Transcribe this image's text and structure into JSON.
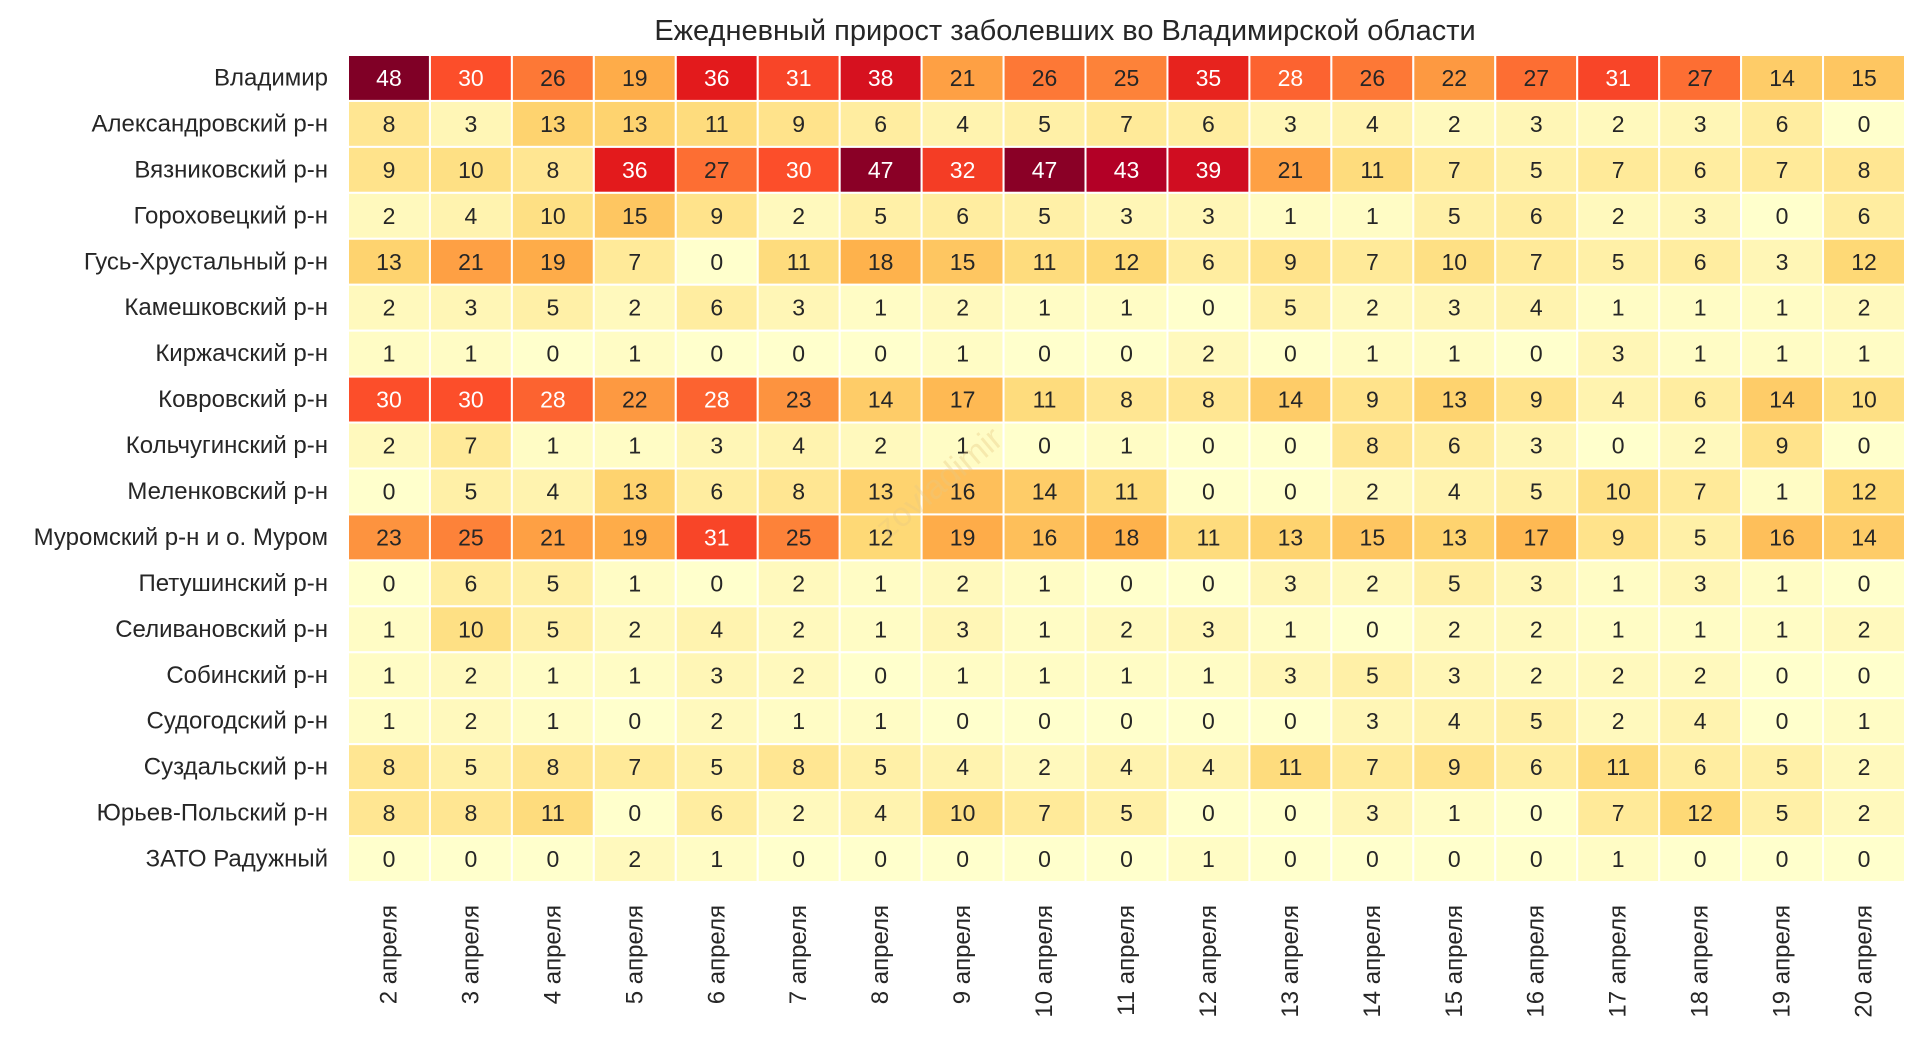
{
  "chart_data": {
    "type": "heatmap",
    "title": "Ежедневный прирост заболевших во Владимирской области",
    "watermark": "zovladimir",
    "colormap": [
      "#ffffcc",
      "#ffeda0",
      "#fed976",
      "#feb24c",
      "#fd8d3c",
      "#fc4e2a",
      "#e31a1c",
      "#bd0026",
      "#800026"
    ],
    "vmin": 0,
    "vmax": 48,
    "columns": [
      "2 апреля",
      "3 апреля",
      "4 апреля",
      "5 апреля",
      "6 апреля",
      "7 апреля",
      "8 апреля",
      "9 апреля",
      "10 апреля",
      "11 апреля",
      "12 апреля",
      "13 апреля",
      "14 апреля",
      "15 апреля",
      "16 апреля",
      "17 апреля",
      "18 апреля",
      "19 апреля",
      "20 апреля"
    ],
    "rows": [
      {
        "name": "Владимир",
        "values": [
          48,
          30,
          26,
          19,
          36,
          31,
          38,
          21,
          26,
          25,
          35,
          28,
          26,
          22,
          27,
          31,
          27,
          14,
          15
        ]
      },
      {
        "name": "Александровский р-н",
        "values": [
          8,
          3,
          13,
          13,
          11,
          9,
          6,
          4,
          5,
          7,
          6,
          3,
          4,
          2,
          3,
          2,
          3,
          6,
          0
        ]
      },
      {
        "name": "Вязниковский р-н",
        "values": [
          9,
          10,
          8,
          36,
          27,
          30,
          47,
          32,
          47,
          43,
          39,
          21,
          11,
          7,
          5,
          7,
          6,
          7,
          8
        ]
      },
      {
        "name": "Гороховецкий р-н",
        "values": [
          2,
          4,
          10,
          15,
          9,
          2,
          5,
          6,
          5,
          3,
          3,
          1,
          1,
          5,
          6,
          2,
          3,
          0,
          6
        ]
      },
      {
        "name": "Гусь-Хрустальный р-н",
        "values": [
          13,
          21,
          19,
          7,
          0,
          11,
          18,
          15,
          11,
          12,
          6,
          9,
          7,
          10,
          7,
          5,
          6,
          3,
          12
        ]
      },
      {
        "name": "Камешковский р-н",
        "values": [
          2,
          3,
          5,
          2,
          6,
          3,
          1,
          2,
          1,
          1,
          0,
          5,
          2,
          3,
          4,
          1,
          1,
          1,
          2
        ]
      },
      {
        "name": "Киржачский р-н",
        "values": [
          1,
          1,
          0,
          1,
          0,
          0,
          0,
          1,
          0,
          0,
          2,
          0,
          1,
          1,
          0,
          3,
          1,
          1,
          1
        ]
      },
      {
        "name": "Ковровский р-н",
        "values": [
          30,
          30,
          28,
          22,
          28,
          23,
          14,
          17,
          11,
          8,
          8,
          14,
          9,
          13,
          9,
          4,
          6,
          14,
          10
        ]
      },
      {
        "name": "Кольчугинский р-н",
        "values": [
          2,
          7,
          1,
          1,
          3,
          4,
          2,
          1,
          0,
          1,
          0,
          0,
          8,
          6,
          3,
          0,
          2,
          9,
          0
        ]
      },
      {
        "name": "Меленковский р-н",
        "values": [
          0,
          5,
          4,
          13,
          6,
          8,
          13,
          16,
          14,
          11,
          0,
          0,
          2,
          4,
          5,
          10,
          7,
          1,
          12
        ]
      },
      {
        "name": "Муромский р-н и о. Муром",
        "values": [
          23,
          25,
          21,
          19,
          31,
          25,
          12,
          19,
          16,
          18,
          11,
          13,
          15,
          13,
          17,
          9,
          5,
          16,
          14
        ]
      },
      {
        "name": "Петушинский р-н",
        "values": [
          0,
          6,
          5,
          1,
          0,
          2,
          1,
          2,
          1,
          0,
          0,
          3,
          2,
          5,
          3,
          1,
          3,
          1,
          0
        ]
      },
      {
        "name": "Селивановский р-н",
        "values": [
          1,
          10,
          5,
          2,
          4,
          2,
          1,
          3,
          1,
          2,
          3,
          1,
          0,
          2,
          2,
          1,
          1,
          1,
          2
        ]
      },
      {
        "name": "Собинский р-н",
        "values": [
          1,
          2,
          1,
          1,
          3,
          2,
          0,
          1,
          1,
          1,
          1,
          3,
          5,
          3,
          2,
          2,
          2,
          0,
          0
        ]
      },
      {
        "name": "Судогодский р-н",
        "values": [
          1,
          2,
          1,
          0,
          2,
          1,
          1,
          0,
          0,
          0,
          0,
          0,
          3,
          4,
          5,
          2,
          4,
          0,
          1
        ]
      },
      {
        "name": "Суздальский р-н",
        "values": [
          8,
          5,
          8,
          7,
          5,
          8,
          5,
          4,
          2,
          4,
          4,
          11,
          7,
          9,
          6,
          11,
          6,
          5,
          2
        ]
      },
      {
        "name": "Юрьев-Польский р-н",
        "values": [
          8,
          8,
          11,
          0,
          6,
          2,
          4,
          10,
          7,
          5,
          0,
          0,
          3,
          1,
          0,
          7,
          12,
          5,
          2
        ]
      },
      {
        "name": "ЗАТО Радужный",
        "values": [
          0,
          0,
          0,
          2,
          1,
          0,
          0,
          0,
          0,
          0,
          1,
          0,
          0,
          0,
          0,
          1,
          0,
          0,
          0
        ]
      }
    ]
  }
}
